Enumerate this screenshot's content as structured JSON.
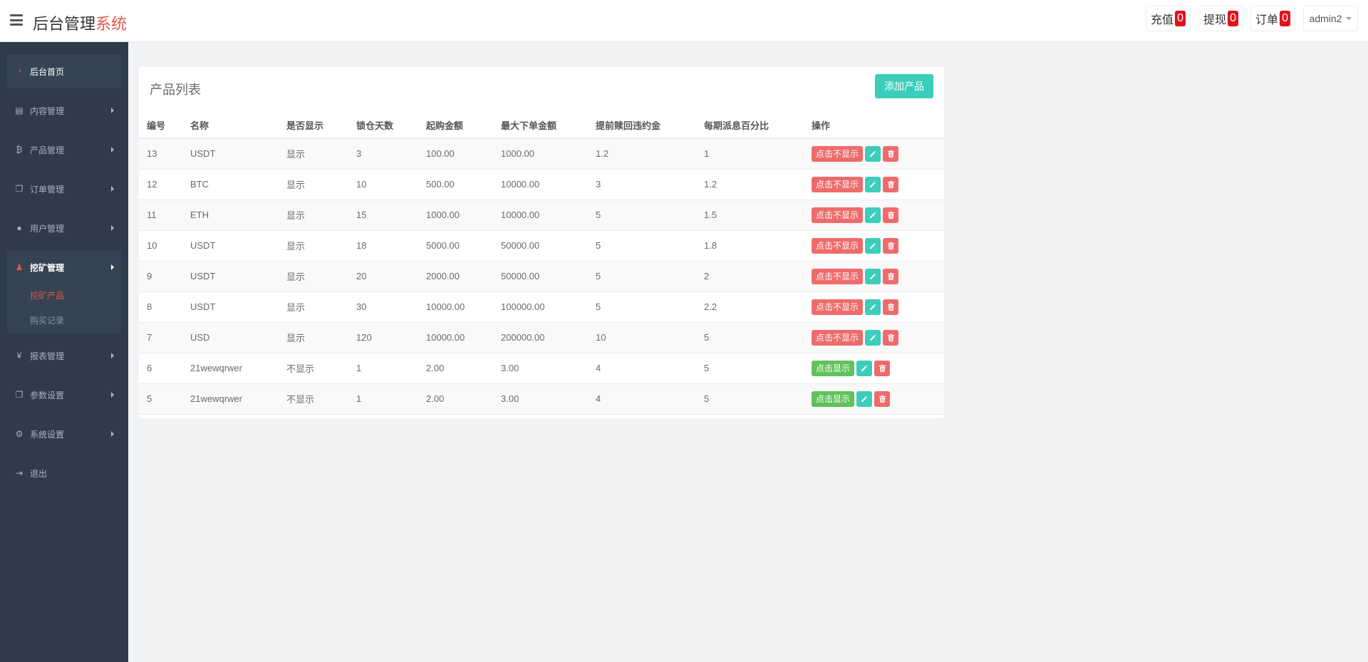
{
  "header": {
    "brand_main": "后台管理",
    "brand_accent": "系统",
    "recharge_label": "充值",
    "recharge_count": "0",
    "withdraw_label": "提现",
    "withdraw_count": "0",
    "orders_label": "订单",
    "orders_count": "0",
    "user": "admin2"
  },
  "sidebar": {
    "items": [
      {
        "label": "后台首页",
        "icon": "dashboard-icon",
        "glyph": "◔"
      },
      {
        "label": "内容管理",
        "icon": "book-icon",
        "glyph": "▤"
      },
      {
        "label": "产品管理",
        "icon": "bitcoin-icon",
        "glyph": "₿"
      },
      {
        "label": "订单管理",
        "icon": "copy-icon",
        "glyph": "❐"
      },
      {
        "label": "用户管理",
        "icon": "user-icon",
        "glyph": "●"
      },
      {
        "label": "挖矿管理",
        "icon": "user-secret-icon",
        "glyph": "♟"
      },
      {
        "label": "报表管理",
        "icon": "yen-icon",
        "glyph": "¥"
      },
      {
        "label": "参数设置",
        "icon": "copy-icon",
        "glyph": "❐"
      },
      {
        "label": "系统设置",
        "icon": "gears-icon",
        "glyph": "⚙"
      },
      {
        "label": "退出",
        "icon": "sign-out-icon",
        "glyph": "⇥"
      }
    ],
    "sub_items": [
      "挖矿产品",
      "购买记录"
    ]
  },
  "panel": {
    "title": "产品列表",
    "add_label": "添加产品",
    "columns": [
      "编号",
      "名称",
      "是否显示",
      "锁仓天数",
      "起购金额",
      "最大下单金额",
      "提前赎回违约金",
      "每期派息百分比",
      "操作"
    ],
    "rows": [
      {
        "id": "13",
        "name": "USDT",
        "display": "显示",
        "lock_days": "3",
        "min_amount": "100.00",
        "max_amount": "1000.00",
        "penalty": "1.2",
        "interest": "1",
        "toggle": "点击不显示",
        "shown": true
      },
      {
        "id": "12",
        "name": "BTC",
        "display": "显示",
        "lock_days": "10",
        "min_amount": "500.00",
        "max_amount": "10000.00",
        "penalty": "3",
        "interest": "1.2",
        "toggle": "点击不显示",
        "shown": true
      },
      {
        "id": "11",
        "name": "ETH",
        "display": "显示",
        "lock_days": "15",
        "min_amount": "1000.00",
        "max_amount": "10000.00",
        "penalty": "5",
        "interest": "1.5",
        "toggle": "点击不显示",
        "shown": true
      },
      {
        "id": "10",
        "name": "USDT",
        "display": "显示",
        "lock_days": "18",
        "min_amount": "5000.00",
        "max_amount": "50000.00",
        "penalty": "5",
        "interest": "1.8",
        "toggle": "点击不显示",
        "shown": true
      },
      {
        "id": "9",
        "name": "USDT",
        "display": "显示",
        "lock_days": "20",
        "min_amount": "2000.00",
        "max_amount": "50000.00",
        "penalty": "5",
        "interest": "2",
        "toggle": "点击不显示",
        "shown": true
      },
      {
        "id": "8",
        "name": "USDT",
        "display": "显示",
        "lock_days": "30",
        "min_amount": "10000.00",
        "max_amount": "100000.00",
        "penalty": "5",
        "interest": "2.2",
        "toggle": "点击不显示",
        "shown": true
      },
      {
        "id": "7",
        "name": "USD",
        "display": "显示",
        "lock_days": "120",
        "min_amount": "10000.00",
        "max_amount": "200000.00",
        "penalty": "10",
        "interest": "5",
        "toggle": "点击不显示",
        "shown": true
      },
      {
        "id": "6",
        "name": "21wewqrwer",
        "display": "不显示",
        "lock_days": "1",
        "min_amount": "2.00",
        "max_amount": "3.00",
        "penalty": "4",
        "interest": "5",
        "toggle": "点击显示",
        "shown": false
      },
      {
        "id": "5",
        "name": "21wewqrwer",
        "display": "不显示",
        "lock_days": "1",
        "min_amount": "2.00",
        "max_amount": "3.00",
        "penalty": "4",
        "interest": "5",
        "toggle": "点击显示",
        "shown": false
      }
    ]
  }
}
